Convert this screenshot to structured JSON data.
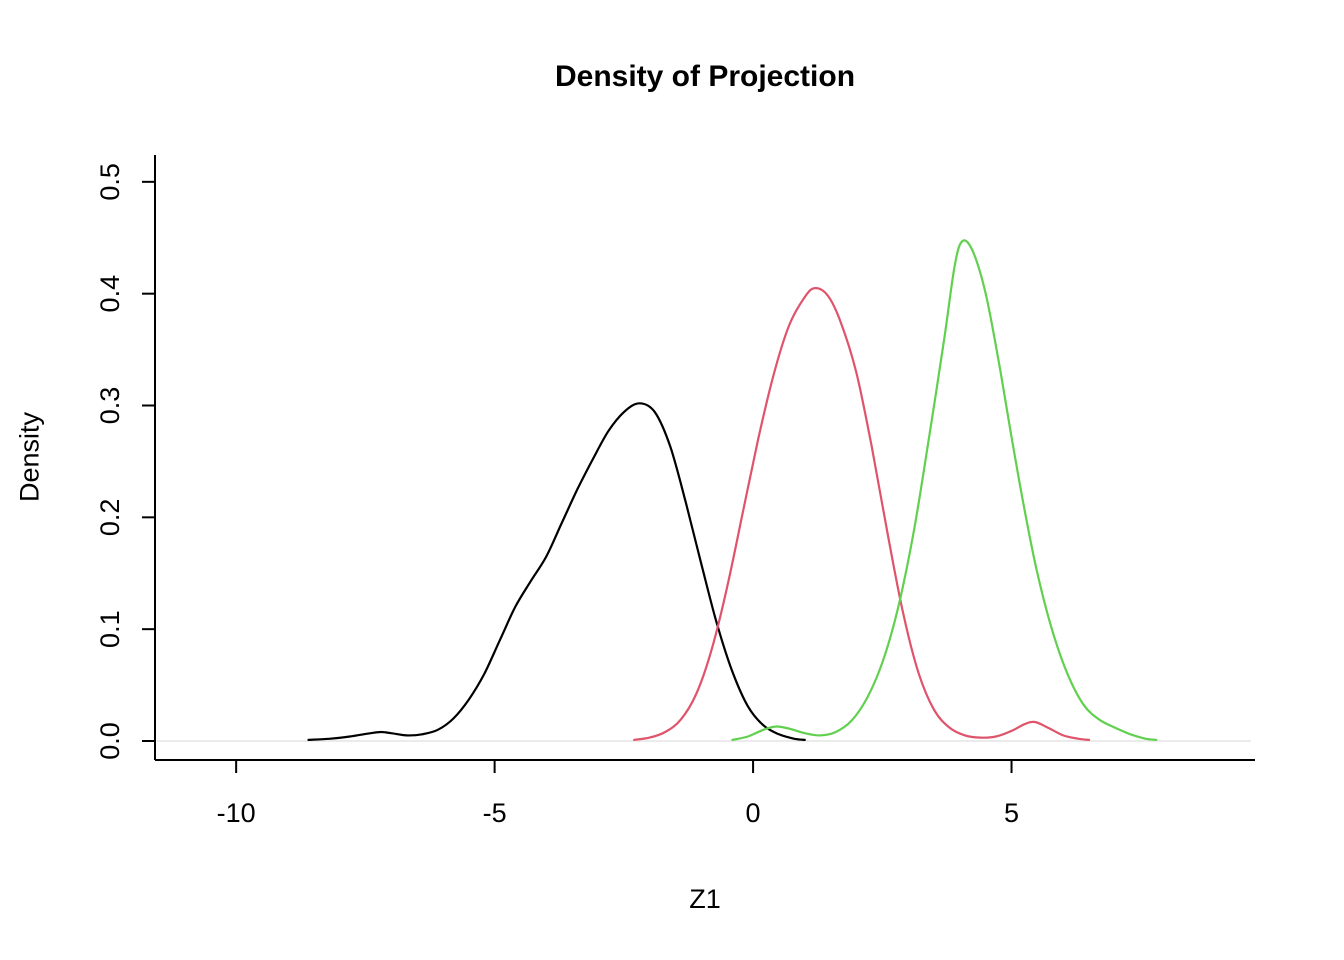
{
  "chart_data": {
    "type": "line",
    "title": "Density of Projection",
    "xlabel": "Z1",
    "ylabel": "Density",
    "xlim": [
      -11.57,
      9.71
    ],
    "ylim": [
      -0.017,
      0.524
    ],
    "xticks": [
      -10,
      -5,
      0,
      5
    ],
    "xtick_labels": [
      "-10",
      "-5",
      "0",
      "5"
    ],
    "yticks": [
      0.0,
      0.1,
      0.2,
      0.3,
      0.4,
      0.5
    ],
    "ytick_labels": [
      "0.0",
      "0.1",
      "0.2",
      "0.3",
      "0.4",
      "0.5"
    ],
    "grid": false,
    "legend": "none",
    "background": "#ffffff",
    "axis_color": "#000000",
    "baseline": {
      "value": 0,
      "color": "#ebebeb"
    },
    "series": [
      {
        "name": "group-1-black",
        "color": "#000000",
        "points": [
          [
            -8.6,
            0.001
          ],
          [
            -8.2,
            0.002
          ],
          [
            -7.8,
            0.004
          ],
          [
            -7.4,
            0.007
          ],
          [
            -7.2,
            0.008
          ],
          [
            -7.0,
            0.007
          ],
          [
            -6.7,
            0.005
          ],
          [
            -6.4,
            0.006
          ],
          [
            -6.1,
            0.01
          ],
          [
            -5.8,
            0.02
          ],
          [
            -5.5,
            0.037
          ],
          [
            -5.2,
            0.06
          ],
          [
            -4.9,
            0.09
          ],
          [
            -4.6,
            0.12
          ],
          [
            -4.3,
            0.143
          ],
          [
            -4.0,
            0.165
          ],
          [
            -3.7,
            0.195
          ],
          [
            -3.4,
            0.225
          ],
          [
            -3.1,
            0.252
          ],
          [
            -2.8,
            0.277
          ],
          [
            -2.5,
            0.294
          ],
          [
            -2.2,
            0.302
          ],
          [
            -1.9,
            0.294
          ],
          [
            -1.6,
            0.263
          ],
          [
            -1.3,
            0.213
          ],
          [
            -1.0,
            0.158
          ],
          [
            -0.7,
            0.105
          ],
          [
            -0.4,
            0.062
          ],
          [
            -0.1,
            0.031
          ],
          [
            0.2,
            0.014
          ],
          [
            0.5,
            0.006
          ],
          [
            0.8,
            0.002
          ],
          [
            1.0,
            0.001
          ]
        ]
      },
      {
        "name": "group-2-red",
        "color": "#DF536B",
        "points": [
          [
            -2.3,
            0.001
          ],
          [
            -2.0,
            0.003
          ],
          [
            -1.7,
            0.008
          ],
          [
            -1.4,
            0.019
          ],
          [
            -1.1,
            0.042
          ],
          [
            -0.8,
            0.082
          ],
          [
            -0.5,
            0.138
          ],
          [
            -0.2,
            0.204
          ],
          [
            0.1,
            0.27
          ],
          [
            0.4,
            0.328
          ],
          [
            0.7,
            0.372
          ],
          [
            1.0,
            0.397
          ],
          [
            1.2,
            0.405
          ],
          [
            1.45,
            0.398
          ],
          [
            1.7,
            0.374
          ],
          [
            2.0,
            0.329
          ],
          [
            2.3,
            0.262
          ],
          [
            2.6,
            0.186
          ],
          [
            2.9,
            0.115
          ],
          [
            3.2,
            0.061
          ],
          [
            3.5,
            0.028
          ],
          [
            3.8,
            0.012
          ],
          [
            4.1,
            0.005
          ],
          [
            4.4,
            0.003
          ],
          [
            4.7,
            0.004
          ],
          [
            5.0,
            0.009
          ],
          [
            5.25,
            0.015
          ],
          [
            5.45,
            0.017
          ],
          [
            5.7,
            0.012
          ],
          [
            6.0,
            0.005
          ],
          [
            6.3,
            0.002
          ],
          [
            6.5,
            0.001
          ]
        ]
      },
      {
        "name": "group-3-green",
        "color": "#61D04F",
        "points": [
          [
            -0.4,
            0.001
          ],
          [
            -0.1,
            0.004
          ],
          [
            0.2,
            0.01
          ],
          [
            0.45,
            0.013
          ],
          [
            0.7,
            0.011
          ],
          [
            1.0,
            0.007
          ],
          [
            1.3,
            0.005
          ],
          [
            1.6,
            0.008
          ],
          [
            1.9,
            0.018
          ],
          [
            2.2,
            0.038
          ],
          [
            2.5,
            0.07
          ],
          [
            2.8,
            0.118
          ],
          [
            3.1,
            0.185
          ],
          [
            3.4,
            0.27
          ],
          [
            3.7,
            0.36
          ],
          [
            3.9,
            0.425
          ],
          [
            4.05,
            0.447
          ],
          [
            4.25,
            0.438
          ],
          [
            4.5,
            0.4
          ],
          [
            4.75,
            0.34
          ],
          [
            5.0,
            0.272
          ],
          [
            5.25,
            0.207
          ],
          [
            5.5,
            0.15
          ],
          [
            5.8,
            0.097
          ],
          [
            6.1,
            0.058
          ],
          [
            6.4,
            0.032
          ],
          [
            6.7,
            0.019
          ],
          [
            7.0,
            0.012
          ],
          [
            7.3,
            0.006
          ],
          [
            7.6,
            0.002
          ],
          [
            7.8,
            0.001
          ]
        ]
      }
    ]
  }
}
